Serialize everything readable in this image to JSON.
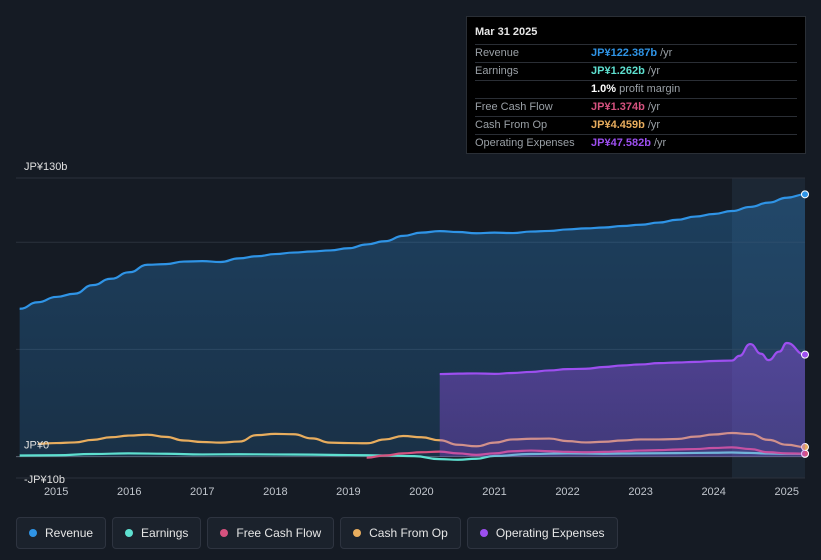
{
  "chart_data": {
    "type": "area",
    "currency_unit": "JP¥ billions",
    "y_ticks": [
      {
        "value": 130,
        "label": "JP¥130b"
      },
      {
        "value": 0,
        "label": "JP¥0"
      },
      {
        "value": -10,
        "label": "-JP¥10b"
      }
    ],
    "ylim": [
      -10,
      130
    ],
    "xlim": [
      2014.45,
      2025.25
    ],
    "x_ticks": [
      2015,
      2016,
      2017,
      2018,
      2019,
      2020,
      2021,
      2022,
      2023,
      2024,
      2025
    ],
    "forecast_shade_start": 2024.25,
    "grid": true,
    "series": [
      {
        "name": "Revenue",
        "color": "#2f94e6",
        "fill": true,
        "x": [
          2014.5,
          2014.75,
          2015.0,
          2015.25,
          2015.5,
          2015.75,
          2016.0,
          2016.25,
          2016.5,
          2016.75,
          2017.0,
          2017.25,
          2017.5,
          2017.75,
          2018.0,
          2018.25,
          2018.5,
          2018.75,
          2019.0,
          2019.25,
          2019.5,
          2019.75,
          2020.0,
          2020.25,
          2020.5,
          2020.75,
          2021.0,
          2021.25,
          2021.5,
          2021.75,
          2022.0,
          2022.25,
          2022.5,
          2022.75,
          2023.0,
          2023.25,
          2023.5,
          2023.75,
          2024.0,
          2024.25,
          2024.5,
          2024.75,
          2025.0,
          2025.25
        ],
        "values": [
          69,
          72,
          74.5,
          76,
          80,
          83,
          86,
          89.5,
          89.8,
          91,
          91.2,
          90.8,
          92.5,
          93.5,
          94.5,
          95.2,
          95.7,
          96.2,
          97.2,
          99,
          100.5,
          103,
          104.5,
          105.2,
          104.8,
          104.2,
          104.5,
          104.3,
          105,
          105.3,
          106,
          106.5,
          106.9,
          107.6,
          108.2,
          109.2,
          110.5,
          112,
          113.2,
          114.6,
          116.5,
          118.5,
          120.8,
          122.387
        ]
      },
      {
        "name": "Earnings",
        "color": "#5ee0d0",
        "fill": false,
        "x": [
          2014.5,
          2015.0,
          2015.5,
          2016.0,
          2016.5,
          2017.0,
          2017.5,
          2018.0,
          2018.5,
          2019.0,
          2019.5,
          2019.9,
          2020.25,
          2020.5,
          2020.75,
          2021.0,
          2021.5,
          2022.0,
          2022.5,
          2023.0,
          2023.5,
          2024.0,
          2024.25,
          2024.5,
          2024.75,
          2025.0,
          2025.25
        ],
        "values": [
          0.5,
          0.6,
          1.2,
          1.5,
          1.3,
          1.0,
          1.1,
          1.0,
          0.9,
          0.7,
          0.5,
          0.2,
          -1.2,
          -1.5,
          -1.0,
          0.3,
          1.2,
          1.5,
          1.3,
          1.5,
          1.6,
          1.8,
          1.9,
          1.7,
          1.4,
          1.3,
          1.262
        ]
      },
      {
        "name": "Free Cash Flow",
        "color": "#d6527f",
        "fill": false,
        "x": [
          2019.25,
          2019.5,
          2019.75,
          2020.0,
          2020.25,
          2020.5,
          2020.75,
          2021.0,
          2021.25,
          2021.5,
          2021.75,
          2022.0,
          2022.25,
          2022.5,
          2022.75,
          2023.0,
          2023.25,
          2023.5,
          2023.75,
          2024.0,
          2024.25,
          2024.5,
          2024.75,
          2025.0,
          2025.25
        ],
        "values": [
          -0.5,
          0.5,
          1.5,
          2.0,
          2.3,
          1.5,
          0.8,
          1.5,
          2.5,
          2.8,
          2.5,
          2.2,
          2.0,
          2.2,
          2.5,
          2.8,
          3.0,
          3.3,
          3.5,
          4.0,
          4.3,
          3.5,
          2.0,
          1.5,
          1.374
        ]
      },
      {
        "name": "Cash From Op",
        "color": "#e8ad5e",
        "fill": false,
        "x": [
          2014.75,
          2015.0,
          2015.25,
          2015.5,
          2015.75,
          2016.0,
          2016.25,
          2016.5,
          2016.75,
          2017.0,
          2017.25,
          2017.5,
          2017.75,
          2018.0,
          2018.25,
          2018.5,
          2018.75,
          2019.0,
          2019.25,
          2019.5,
          2019.75,
          2020.0,
          2020.25,
          2020.5,
          2020.75,
          2021.0,
          2021.25,
          2021.5,
          2021.75,
          2022.0,
          2022.25,
          2022.5,
          2022.75,
          2023.0,
          2023.25,
          2023.5,
          2023.75,
          2024.0,
          2024.25,
          2024.5,
          2024.75,
          2025.0,
          2025.25
        ],
        "values": [
          6.0,
          6.3,
          6.6,
          7.8,
          9.0,
          9.8,
          10.2,
          9.2,
          7.5,
          6.8,
          6.5,
          7.0,
          10.0,
          10.6,
          10.4,
          8.5,
          6.5,
          6.3,
          6.2,
          8.0,
          9.6,
          9.0,
          7.6,
          5.5,
          4.8,
          6.5,
          8.0,
          8.3,
          8.4,
          7.2,
          6.6,
          6.9,
          7.5,
          8.0,
          8.0,
          8.2,
          9.3,
          10.3,
          11.0,
          10.5,
          7.8,
          5.5,
          4.459
        ]
      },
      {
        "name": "Operating Expenses",
        "color": "#9d4ff0",
        "fill": true,
        "x": [
          2020.25,
          2020.5,
          2020.75,
          2021.0,
          2021.25,
          2021.5,
          2021.75,
          2022.0,
          2022.25,
          2022.5,
          2022.75,
          2023.0,
          2023.25,
          2023.5,
          2023.75,
          2024.0,
          2024.25,
          2024.35,
          2024.5,
          2024.65,
          2024.75,
          2024.9,
          2025.0,
          2025.25
        ],
        "values": [
          38.5,
          38.7,
          38.8,
          38.6,
          39.0,
          39.5,
          40.2,
          40.8,
          41.0,
          41.8,
          42.5,
          43.0,
          43.6,
          43.9,
          44.2,
          44.6,
          44.8,
          47.0,
          52.5,
          48.0,
          45.0,
          49.0,
          53.0,
          47.582
        ]
      }
    ]
  },
  "tooltip": {
    "date": "Mar 31 2025",
    "rows": [
      {
        "label": "Revenue",
        "value": "JP¥122.387b",
        "unit": "/yr",
        "color": "#2f94e6"
      },
      {
        "label": "Earnings",
        "value": "JP¥1.262b",
        "unit": "/yr",
        "color": "#5ee0d0"
      },
      {
        "label": "",
        "value": "1.0%",
        "unit": "profit margin",
        "color": "#ffffff"
      },
      {
        "label": "Free Cash Flow",
        "value": "JP¥1.374b",
        "unit": "/yr",
        "color": "#d6527f"
      },
      {
        "label": "Cash From Op",
        "value": "JP¥4.459b",
        "unit": "/yr",
        "color": "#e8ad5e"
      },
      {
        "label": "Operating Expenses",
        "value": "JP¥47.582b",
        "unit": "/yr",
        "color": "#9d4ff0"
      }
    ]
  },
  "legend": [
    {
      "label": "Revenue",
      "color": "#2f94e6"
    },
    {
      "label": "Earnings",
      "color": "#5ee0d0"
    },
    {
      "label": "Free Cash Flow",
      "color": "#d6527f"
    },
    {
      "label": "Cash From Op",
      "color": "#e8ad5e"
    },
    {
      "label": "Operating Expenses",
      "color": "#9d4ff0"
    }
  ]
}
